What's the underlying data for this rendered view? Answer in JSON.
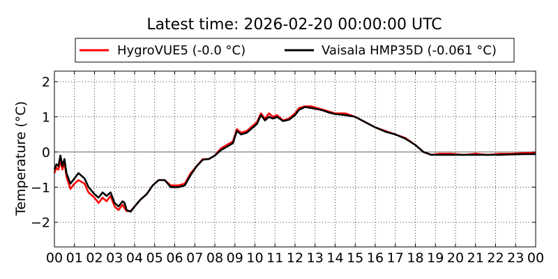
{
  "chart_data": {
    "type": "line",
    "title": "Latest time: 2026-02-20 00:00:00 UTC",
    "xlabel": "",
    "ylabel": "Temperature (°C)",
    "xlim": [
      0,
      24
    ],
    "ylim": [
      -2.7,
      2.3
    ],
    "x_ticks": [
      0,
      1,
      2,
      3,
      4,
      5,
      6,
      7,
      8,
      9,
      10,
      11,
      12,
      13,
      14,
      15,
      16,
      17,
      18,
      19,
      20,
      21,
      22,
      23,
      24
    ],
    "x_tick_labels": [
      "00",
      "01",
      "02",
      "03",
      "04",
      "05",
      "06",
      "07",
      "08",
      "09",
      "10",
      "11",
      "12",
      "13",
      "14",
      "15",
      "16",
      "17",
      "18",
      "19",
      "20",
      "21",
      "22",
      "23",
      "00"
    ],
    "y_ticks": [
      -2,
      -1,
      0,
      1,
      2
    ],
    "y_tick_labels": [
      "−2",
      "−1",
      "0",
      "1",
      "2"
    ],
    "grid": true,
    "zero_line": true,
    "legend": "top",
    "series": [
      {
        "name": "HygroVUE5 (-0.0 °C)",
        "color": "#ff0000",
        "points": [
          [
            0.0,
            -0.6
          ],
          [
            0.1,
            -0.45
          ],
          [
            0.2,
            -0.5
          ],
          [
            0.3,
            -0.25
          ],
          [
            0.4,
            -0.5
          ],
          [
            0.5,
            -0.3
          ],
          [
            0.6,
            -0.7
          ],
          [
            0.8,
            -1.05
          ],
          [
            1.0,
            -0.9
          ],
          [
            1.2,
            -0.8
          ],
          [
            1.5,
            -0.9
          ],
          [
            1.7,
            -1.15
          ],
          [
            2.0,
            -1.3
          ],
          [
            2.2,
            -1.45
          ],
          [
            2.4,
            -1.3
          ],
          [
            2.6,
            -1.4
          ],
          [
            2.8,
            -1.25
          ],
          [
            3.0,
            -1.55
          ],
          [
            3.2,
            -1.65
          ],
          [
            3.4,
            -1.5
          ],
          [
            3.5,
            -1.6
          ],
          [
            3.6,
            -1.68
          ],
          [
            3.8,
            -1.68
          ],
          [
            4.0,
            -1.55
          ],
          [
            4.3,
            -1.35
          ],
          [
            4.6,
            -1.2
          ],
          [
            4.9,
            -0.95
          ],
          [
            5.2,
            -0.8
          ],
          [
            5.5,
            -0.8
          ],
          [
            5.8,
            -0.95
          ],
          [
            6.2,
            -0.95
          ],
          [
            6.5,
            -0.9
          ],
          [
            6.8,
            -0.6
          ],
          [
            7.1,
            -0.4
          ],
          [
            7.4,
            -0.2
          ],
          [
            7.7,
            -0.2
          ],
          [
            8.0,
            -0.1
          ],
          [
            8.3,
            0.1
          ],
          [
            8.6,
            0.2
          ],
          [
            8.9,
            0.3
          ],
          [
            9.1,
            0.65
          ],
          [
            9.3,
            0.55
          ],
          [
            9.6,
            0.6
          ],
          [
            9.9,
            0.75
          ],
          [
            10.1,
            0.85
          ],
          [
            10.3,
            1.1
          ],
          [
            10.5,
            0.95
          ],
          [
            10.7,
            1.1
          ],
          [
            10.9,
            1.0
          ],
          [
            11.1,
            1.05
          ],
          [
            11.4,
            0.9
          ],
          [
            11.7,
            0.95
          ],
          [
            12.0,
            1.1
          ],
          [
            12.2,
            1.25
          ],
          [
            12.5,
            1.3
          ],
          [
            12.8,
            1.3
          ],
          [
            13.1,
            1.25
          ],
          [
            13.4,
            1.2
          ],
          [
            13.7,
            1.15
          ],
          [
            14.0,
            1.1
          ],
          [
            14.5,
            1.1
          ],
          [
            15.0,
            1.0
          ],
          [
            15.5,
            0.85
          ],
          [
            16.0,
            0.7
          ],
          [
            16.5,
            0.6
          ],
          [
            17.0,
            0.5
          ],
          [
            17.5,
            0.4
          ],
          [
            18.0,
            0.2
          ],
          [
            18.4,
            0.0
          ],
          [
            18.8,
            -0.08
          ],
          [
            19.2,
            -0.05
          ],
          [
            19.8,
            -0.05
          ],
          [
            20.4,
            -0.08
          ],
          [
            21.0,
            -0.05
          ],
          [
            21.6,
            -0.08
          ],
          [
            22.2,
            -0.05
          ],
          [
            22.8,
            -0.05
          ],
          [
            23.4,
            -0.03
          ],
          [
            24.0,
            -0.02
          ]
        ]
      },
      {
        "name": "Vaisala HMP35D (-0.061 °C)",
        "color": "#000000",
        "points": [
          [
            0.0,
            -0.5
          ],
          [
            0.1,
            -0.35
          ],
          [
            0.2,
            -0.4
          ],
          [
            0.3,
            -0.1
          ],
          [
            0.4,
            -0.4
          ],
          [
            0.5,
            -0.2
          ],
          [
            0.6,
            -0.6
          ],
          [
            0.8,
            -0.9
          ],
          [
            1.0,
            -0.75
          ],
          [
            1.2,
            -0.6
          ],
          [
            1.5,
            -0.75
          ],
          [
            1.7,
            -1.0
          ],
          [
            2.0,
            -1.2
          ],
          [
            2.2,
            -1.3
          ],
          [
            2.4,
            -1.15
          ],
          [
            2.6,
            -1.25
          ],
          [
            2.8,
            -1.15
          ],
          [
            3.0,
            -1.45
          ],
          [
            3.2,
            -1.55
          ],
          [
            3.4,
            -1.4
          ],
          [
            3.5,
            -1.45
          ],
          [
            3.6,
            -1.65
          ],
          [
            3.8,
            -1.7
          ],
          [
            4.0,
            -1.55
          ],
          [
            4.3,
            -1.35
          ],
          [
            4.6,
            -1.2
          ],
          [
            4.9,
            -0.95
          ],
          [
            5.2,
            -0.8
          ],
          [
            5.5,
            -0.8
          ],
          [
            5.8,
            -1.0
          ],
          [
            6.2,
            -1.0
          ],
          [
            6.5,
            -0.95
          ],
          [
            6.8,
            -0.65
          ],
          [
            7.1,
            -0.4
          ],
          [
            7.4,
            -0.22
          ],
          [
            7.7,
            -0.2
          ],
          [
            8.0,
            -0.1
          ],
          [
            8.3,
            0.05
          ],
          [
            8.6,
            0.15
          ],
          [
            8.9,
            0.25
          ],
          [
            9.1,
            0.6
          ],
          [
            9.3,
            0.5
          ],
          [
            9.6,
            0.55
          ],
          [
            9.9,
            0.7
          ],
          [
            10.1,
            0.8
          ],
          [
            10.3,
            1.05
          ],
          [
            10.5,
            0.9
          ],
          [
            10.7,
            1.0
          ],
          [
            10.9,
            0.95
          ],
          [
            11.1,
            1.0
          ],
          [
            11.4,
            0.88
          ],
          [
            11.7,
            0.92
          ],
          [
            12.0,
            1.05
          ],
          [
            12.2,
            1.2
          ],
          [
            12.5,
            1.28
          ],
          [
            12.8,
            1.25
          ],
          [
            13.1,
            1.22
          ],
          [
            13.4,
            1.18
          ],
          [
            13.7,
            1.12
          ],
          [
            14.0,
            1.08
          ],
          [
            14.5,
            1.05
          ],
          [
            15.0,
            1.0
          ],
          [
            15.5,
            0.85
          ],
          [
            16.0,
            0.7
          ],
          [
            16.5,
            0.58
          ],
          [
            17.0,
            0.5
          ],
          [
            17.5,
            0.38
          ],
          [
            18.0,
            0.2
          ],
          [
            18.4,
            0.0
          ],
          [
            18.8,
            -0.08
          ],
          [
            19.2,
            -0.08
          ],
          [
            19.8,
            -0.08
          ],
          [
            20.4,
            -0.08
          ],
          [
            21.0,
            -0.08
          ],
          [
            21.6,
            -0.08
          ],
          [
            22.2,
            -0.08
          ],
          [
            22.8,
            -0.07
          ],
          [
            23.4,
            -0.06
          ],
          [
            24.0,
            -0.06
          ]
        ]
      }
    ]
  }
}
